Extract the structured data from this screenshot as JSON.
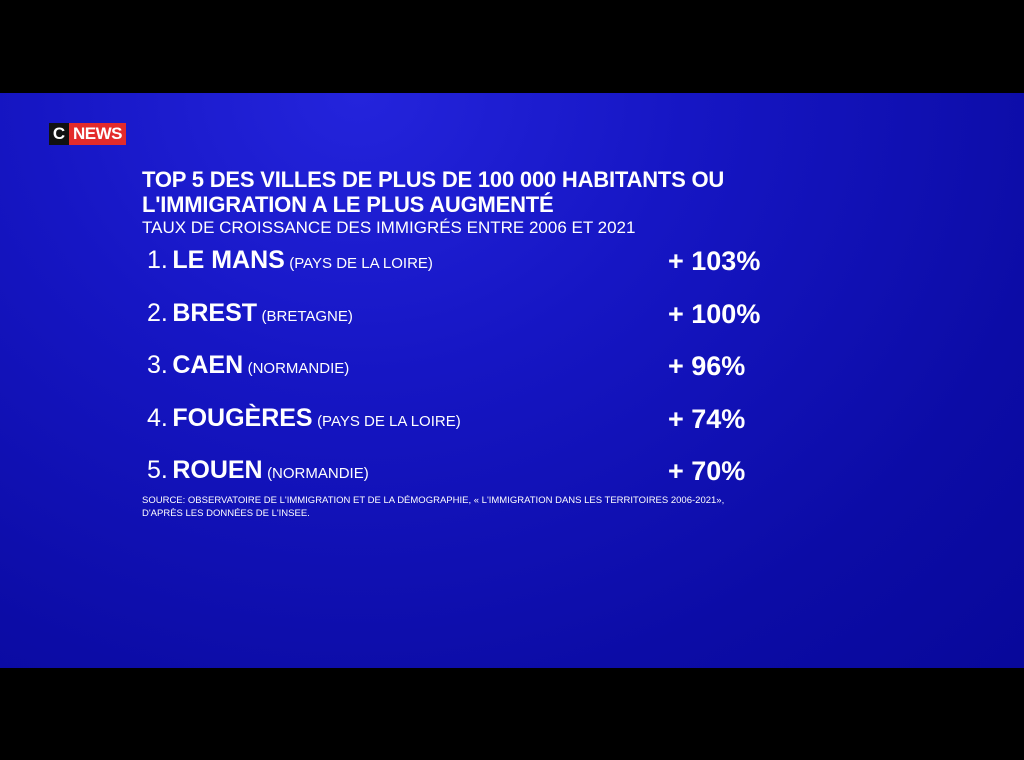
{
  "logo": {
    "c": "C",
    "news": "NEWS"
  },
  "title": {
    "line1": "TOP 5 DES VILLES DE PLUS DE 100 000 HABITANTS OU",
    "line2": "L'IMMIGRATION A LE PLUS AUGMENTÉ",
    "subtitle": "TAUX DE CROISSANCE DES IMMIGRÉS ENTRE 2006 ET 2021"
  },
  "rows": [
    {
      "rank": "1.",
      "city": "LE MANS",
      "region": "(PAYS DE LA LOIRE)",
      "value": "+ 103%"
    },
    {
      "rank": "2.",
      "city": "BREST",
      "region": "(BRETAGNE)",
      "value": "+ 100%"
    },
    {
      "rank": "3.",
      "city": "CAEN",
      "region": "(NORMANDIE)",
      "value": "+ 96%"
    },
    {
      "rank": "4.",
      "city": "FOUGÈRES",
      "region": "(PAYS DE LA LOIRE)",
      "value": "+ 74%"
    },
    {
      "rank": "5.",
      "city": "ROUEN",
      "region": "(NORMANDIE)",
      "value": "+ 70%"
    }
  ],
  "source": {
    "line1": "SOURCE: OBSERVATOIRE DE L'IMMIGRATION ET DE LA DÉMOGRAPHIE, « L'IMMIGRATION DANS LES TERRITOIRES 2006-2021»,",
    "line2": "D'APRÈS LES DONNÉES DE L'INSEE."
  }
}
